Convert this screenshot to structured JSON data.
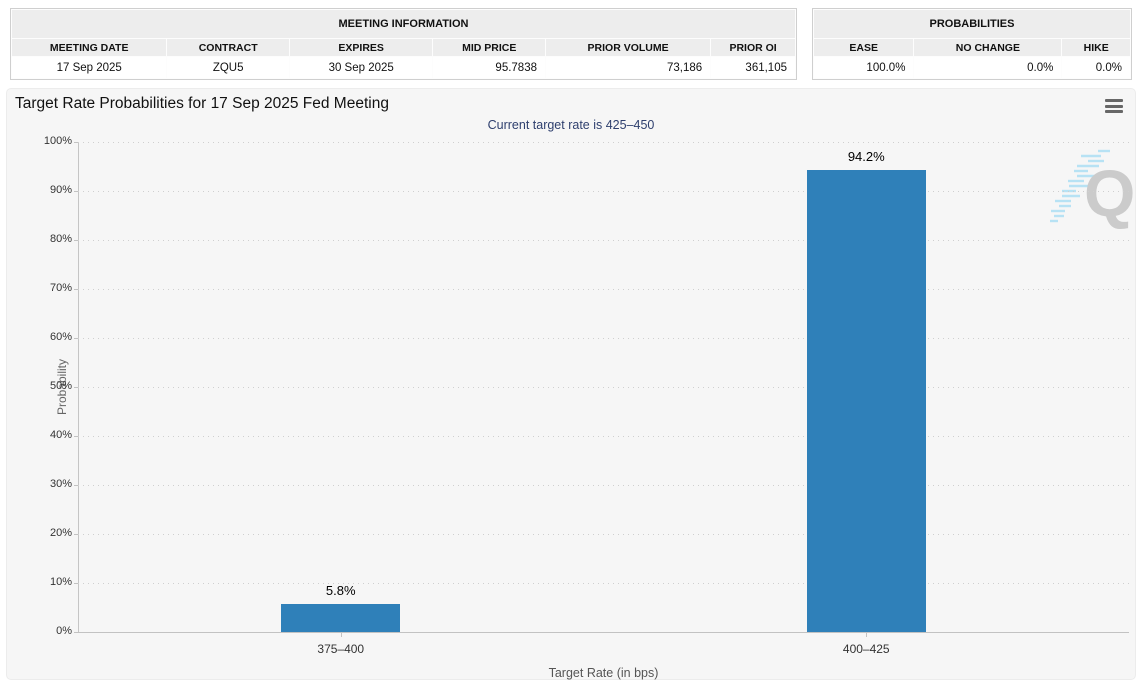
{
  "meeting_info": {
    "title": "MEETING INFORMATION",
    "columns": [
      "MEETING DATE",
      "CONTRACT",
      "EXPIRES",
      "MID PRICE",
      "PRIOR VOLUME",
      "PRIOR OI"
    ],
    "row": [
      "17 Sep 2025",
      "ZQU5",
      "30 Sep 2025",
      "95.7838",
      "73,186",
      "361,105"
    ]
  },
  "probabilities": {
    "title": "PROBABILITIES",
    "columns": [
      "EASE",
      "NO CHANGE",
      "HIKE"
    ],
    "row": [
      "100.0%",
      "0.0%",
      "0.0%"
    ]
  },
  "chart": {
    "menu_icon": "hamburger-menu-icon",
    "watermark_letter": "Q"
  },
  "chart_data": {
    "type": "bar",
    "title": "Target Rate Probabilities for 17 Sep 2025 Fed Meeting",
    "subtitle": "Current target rate is 425–450",
    "categories": [
      "375–400",
      "400–425"
    ],
    "values": [
      5.8,
      94.2
    ],
    "value_labels": [
      "5.8%",
      "94.2%"
    ],
    "xlabel": "Target Rate (in bps)",
    "ylabel": "Probability",
    "ylim": [
      0,
      100
    ],
    "ytick_labels": [
      "0%",
      "10%",
      "20%",
      "30%",
      "40%",
      "50%",
      "60%",
      "70%",
      "80%",
      "90%",
      "100%"
    ],
    "grid": "dotted",
    "legend": "none",
    "bar_color": "#2f80b9",
    "subtitle_color": "#2e3f6e"
  }
}
